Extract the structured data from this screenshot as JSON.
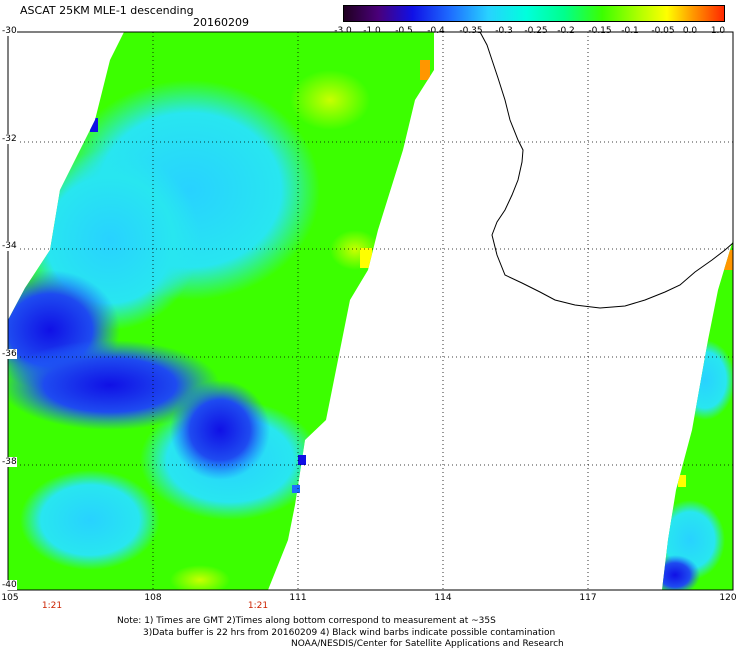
{
  "title": "ASCAT 25KM MLE-1 descending",
  "date": "20160209",
  "colorbar": {
    "labels": [
      "-3.0",
      "-1.0",
      "-0.5",
      "-0.4",
      "-0.35",
      "-0.3",
      "-0.25",
      "-0.2",
      "-0.15",
      "-0.1",
      "-0.05",
      "0.0",
      "1.0"
    ]
  },
  "axes": {
    "lat_labels": [
      "-30",
      "-32",
      "-34",
      "-36",
      "-38",
      "-40"
    ],
    "lon_labels": [
      "105",
      "108",
      "111",
      "114",
      "117",
      "120"
    ]
  },
  "times": [
    "1:21",
    "1:21"
  ],
  "notes": {
    "line1": "Note: 1) Times are GMT 2)Times along bottom correspond to measurement at ~35S",
    "line2": "3)Data buffer is 22 hrs from 20160209 4) Black wind barbs indicate possible contamination",
    "line3": "NOAA/NESDIS/Center for Satellite Applications and Research"
  },
  "colors": {
    "deep_blue": "#1010e6",
    "blue": "#1e6dff",
    "cyan": "#28d2ff",
    "green": "#3cff00",
    "yellow": "#ffff00",
    "orange": "#ff9600"
  }
}
